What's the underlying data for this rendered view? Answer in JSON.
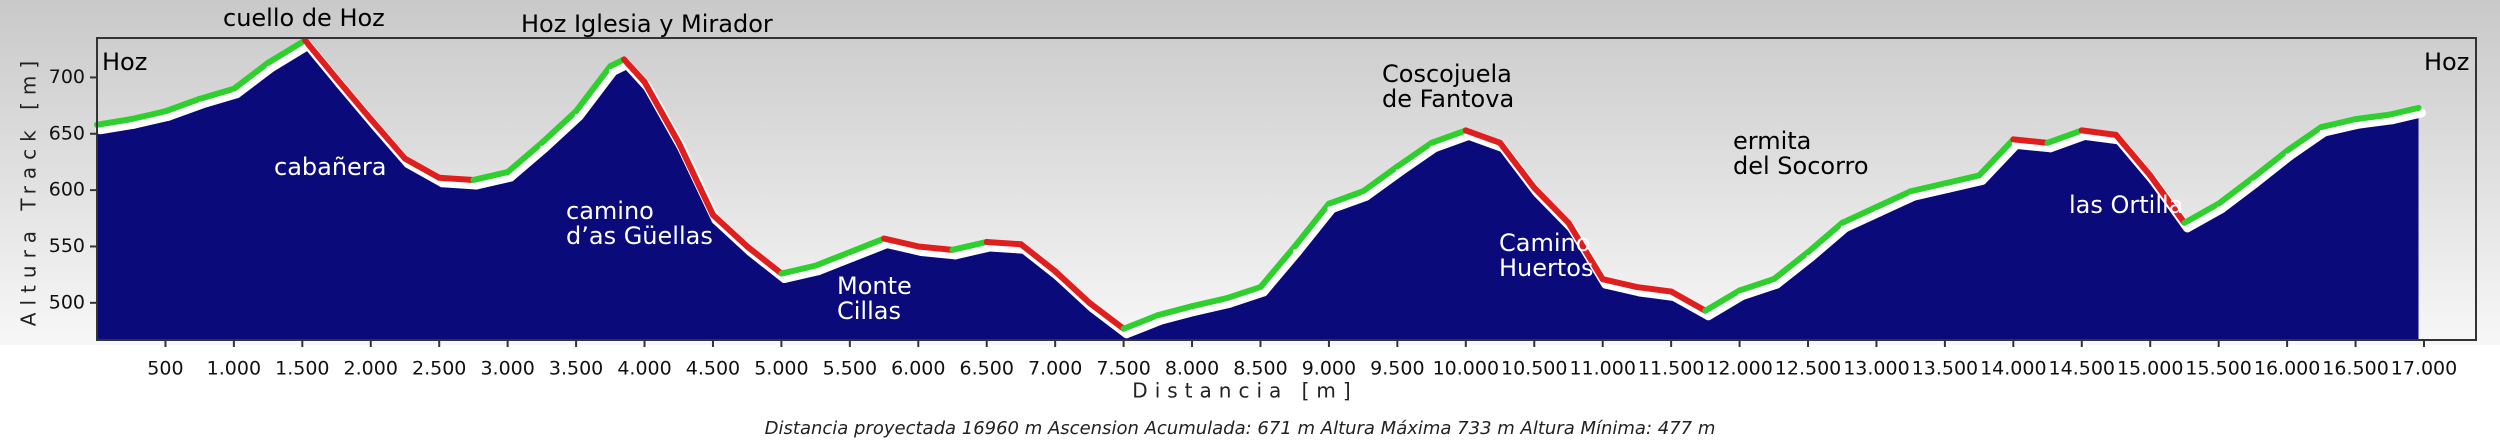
{
  "chart_data": {
    "type": "area",
    "x_label": "Distancia [m]",
    "y_label": "Altura Track [m]",
    "footer": "Distancia proyectada 16960 m   Ascension Acumulada: 671 m   Altura Máxima 733 m   Altura Mínima: 477 m",
    "fill_color": "#0a0a7a",
    "ascent_color": "#2ed02e",
    "descent_color": "#e01e1e",
    "grid": false,
    "x": [
      0,
      250,
      500,
      750,
      1000,
      1250,
      1520,
      1750,
      2000,
      2250,
      2500,
      2750,
      3000,
      3250,
      3500,
      3750,
      3850,
      4000,
      4250,
      4500,
      4750,
      5000,
      5250,
      5500,
      5750,
      6000,
      6250,
      6500,
      6750,
      7000,
      7250,
      7500,
      7750,
      8000,
      8250,
      8500,
      8750,
      9000,
      9250,
      9500,
      9750,
      10000,
      10250,
      10500,
      10750,
      11000,
      11250,
      11500,
      11750,
      12000,
      12250,
      12500,
      12750,
      13000,
      13250,
      13500,
      13750,
      14000,
      14250,
      14500,
      14750,
      15000,
      15250,
      15500,
      15750,
      16000,
      16250,
      16500,
      16750,
      16960
    ],
    "values": [
      658,
      663,
      670,
      681,
      690,
      713,
      733,
      699,
      663,
      628,
      611,
      609,
      616,
      642,
      670,
      710,
      716,
      696,
      642,
      578,
      550,
      526,
      533,
      545,
      557,
      550,
      547,
      554,
      552,
      528,
      500,
      477,
      489,
      497,
      504,
      514,
      550,
      588,
      599,
      621,
      642,
      653,
      642,
      602,
      571,
      521,
      514,
      510,
      493,
      511,
      521,
      545,
      571,
      585,
      599,
      606,
      613,
      645,
      642,
      653,
      649,
      613,
      571,
      588,
      611,
      635,
      656,
      663,
      667,
      673
    ],
    "xlim": [
      0,
      17380
    ],
    "ylim": [
      467,
      735
    ],
    "yticks": [
      500,
      550,
      600,
      650,
      700
    ],
    "xticks": [
      500,
      {
        "value": 1000,
        "label": "1.000"
      },
      {
        "value": 1500,
        "label": "1.500"
      },
      {
        "value": 2000,
        "label": "2.000"
      },
      {
        "value": 2500,
        "label": "2.500"
      },
      {
        "value": 3000,
        "label": "3.000"
      },
      {
        "value": 3500,
        "label": "3.500"
      },
      {
        "value": 4000,
        "label": "4.000"
      },
      {
        "value": 4500,
        "label": "4.500"
      },
      {
        "value": 5000,
        "label": "5.000"
      },
      {
        "value": 5500,
        "label": "5.500"
      },
      {
        "value": 6000,
        "label": "6.000"
      },
      {
        "value": 6500,
        "label": "6.500"
      },
      {
        "value": 7000,
        "label": "7.000"
      },
      {
        "value": 7500,
        "label": "7.500"
      },
      {
        "value": 8000,
        "label": "8.000"
      },
      {
        "value": 8500,
        "label": "8.500"
      },
      {
        "value": 9000,
        "label": "9.000"
      },
      {
        "value": 9500,
        "label": "9.500"
      },
      {
        "value": 10000,
        "label": "10.000"
      },
      {
        "value": 10500,
        "label": "10.500"
      },
      {
        "value": 11000,
        "label": "11.000"
      },
      {
        "value": 11500,
        "label": "11.500"
      },
      {
        "value": 12000,
        "label": "12.000"
      },
      {
        "value": 12500,
        "label": "12.500"
      },
      {
        "value": 13000,
        "label": "13.000"
      },
      {
        "value": 13500,
        "label": "13.500"
      },
      {
        "value": 14000,
        "label": "14.000"
      },
      {
        "value": 14500,
        "label": "14.500"
      },
      {
        "value": 15000,
        "label": "15.000"
      },
      {
        "value": 15500,
        "label": "15.500"
      },
      {
        "value": 16000,
        "label": "16.000"
      },
      {
        "value": 16500,
        "label": "16.500"
      },
      {
        "value": 17000,
        "label": "17.000"
      }
    ],
    "annotations": [
      {
        "lines": [
          "Hoz"
        ]
      },
      {
        "lines": [
          "Hoz"
        ]
      },
      {
        "lines": [
          "cuello de Hoz"
        ]
      },
      {
        "lines": [
          "Hoz Iglesia y Mirador"
        ]
      },
      {
        "lines": [
          "cabañera"
        ]
      },
      {
        "lines": [
          "camino",
          "d’as Güellas"
        ]
      },
      {
        "lines": [
          "Monte",
          "Cillas"
        ]
      },
      {
        "lines": [
          "Coscojuela",
          "de Fantova"
        ]
      },
      {
        "lines": [
          "Camino",
          "Huertos"
        ]
      },
      {
        "lines": [
          "ermita",
          "del Socorro"
        ]
      },
      {
        "lines": [
          "las Ortilla"
        ]
      }
    ]
  }
}
